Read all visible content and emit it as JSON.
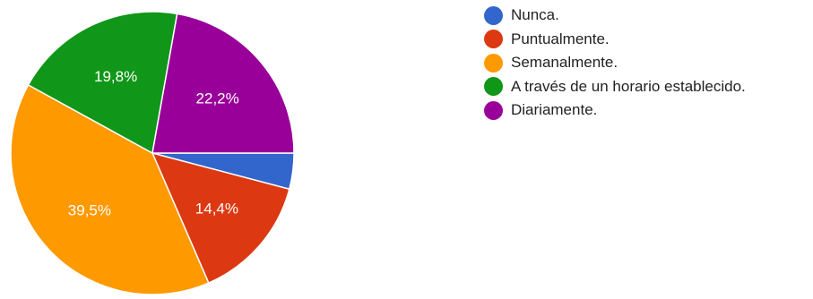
{
  "chart_data": {
    "type": "pie",
    "legend_position": "right",
    "slices": [
      {
        "label": "Nunca.",
        "value": 4.1,
        "value_label": "",
        "color": "#3366cc"
      },
      {
        "label": "Puntualmente.",
        "value": 14.4,
        "value_label": "14,4%",
        "color": "#dc3912"
      },
      {
        "label": "Semanalmente.",
        "value": 39.5,
        "value_label": "39,5%",
        "color": "#ff9900"
      },
      {
        "label": "A través de un horario establecido.",
        "value": 19.8,
        "value_label": "19,8%",
        "color": "#109618"
      },
      {
        "label": "Diariamente.",
        "value": 22.2,
        "value_label": "22,2%",
        "color": "#990099"
      }
    ]
  }
}
